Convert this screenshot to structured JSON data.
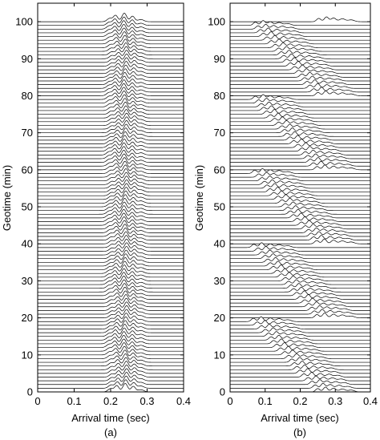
{
  "chart_data": [
    {
      "panel_label": "(a)",
      "type": "line",
      "description_style": "stacked seismic waveform traces (wiggle plot)",
      "xlabel": "Arrival time (sec)",
      "ylabel": "Geotime (min)",
      "xlim": [
        0,
        0.4
      ],
      "ylim": [
        0,
        105
      ],
      "xticks": [
        0,
        0.1,
        0.2,
        0.3,
        0.4
      ],
      "xtick_labels": [
        "0",
        "0.1",
        "0.2",
        "0.3",
        "0.4"
      ],
      "yticks": [
        0,
        10,
        20,
        30,
        40,
        50,
        60,
        70,
        80,
        90,
        100
      ],
      "ytick_labels": [
        "0",
        "10",
        "20",
        "30",
        "40",
        "50",
        "60",
        "70",
        "80",
        "90",
        "100"
      ],
      "trace_count": 101,
      "trace_geotime_start": 0,
      "trace_geotime_end": 100,
      "arrival_window_sec": [
        0.19,
        0.29
      ],
      "main_peak_sec": 0.24,
      "grid": false
    },
    {
      "panel_label": "(b)",
      "type": "line",
      "description_style": "stacked seismic waveform traces (wiggle plot)",
      "xlabel": "Arrival time (sec)",
      "ylabel": "Geotime (min)",
      "xlim": [
        0,
        0.4
      ],
      "ylim": [
        0,
        105
      ],
      "xticks": [
        0,
        0.1,
        0.2,
        0.3,
        0.4
      ],
      "xtick_labels": [
        "0",
        "0.1",
        "0.2",
        "0.3",
        "0.4"
      ],
      "yticks": [
        0,
        10,
        20,
        30,
        40,
        50,
        60,
        70,
        80,
        90,
        100
      ],
      "ytick_labels": [
        "0",
        "10",
        "20",
        "30",
        "40",
        "50",
        "60",
        "70",
        "80",
        "90",
        "100"
      ],
      "trace_count": 101,
      "trace_geotime_start": 0,
      "trace_geotime_end": 100,
      "sawtooth_period_min": 20,
      "arrival_start_sec": 0.25,
      "arrival_end_sec": 0.06,
      "grid": false
    }
  ]
}
